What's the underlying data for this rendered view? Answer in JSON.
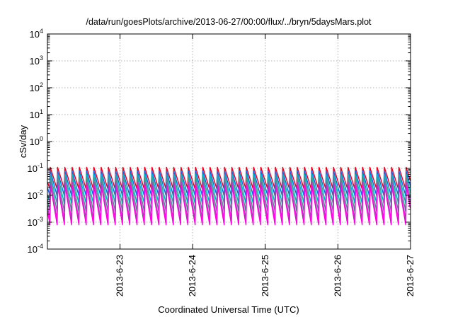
{
  "chart_data": {
    "type": "line",
    "title": "/data/run/goesPlots/archive/2013-06-27/00:00/flux/../bryn/5daysMars.plot",
    "xlabel": "Coordinated Universal Time (UTC)",
    "ylabel": "cSv/day",
    "yscale": "log",
    "ylim_exponent": [
      -4,
      4
    ],
    "y_tick_labels": [
      {
        "base": "10",
        "exp": "-4"
      },
      {
        "base": "10",
        "exp": "-3"
      },
      {
        "base": "10",
        "exp": "-2"
      },
      {
        "base": "10",
        "exp": "-1"
      },
      {
        "base": "10",
        "exp": "0"
      },
      {
        "base": "10",
        "exp": "1"
      },
      {
        "base": "10",
        "exp": "2"
      },
      {
        "base": "10",
        "exp": "3"
      },
      {
        "base": "10",
        "exp": "4"
      }
    ],
    "xlim": [
      "2013-06-22 00:00",
      "2013-06-27 00:00"
    ],
    "x_tick_labels": [
      "2013-6-23",
      "2013-6-24",
      "2013-6-25",
      "2013-6-26",
      "2013-6-27"
    ],
    "grid": true,
    "cycles_per_day": 10,
    "series": [
      {
        "color": "#e8001a",
        "peak": 0.11,
        "trough": 0.018
      },
      {
        "color": "#2060e0",
        "peak": 0.08,
        "trough": 0.01
      },
      {
        "color": "#00b8c8",
        "peak": 0.06,
        "trough": 0.005
      },
      {
        "color": "#4a9a8a",
        "peak": 0.045,
        "trough": 0.0025
      },
      {
        "color": "#b040c0",
        "peak": 0.03,
        "trough": 0.0013
      },
      {
        "color": "#ff00e0",
        "peak": 0.022,
        "trough": 0.0008
      }
    ]
  }
}
